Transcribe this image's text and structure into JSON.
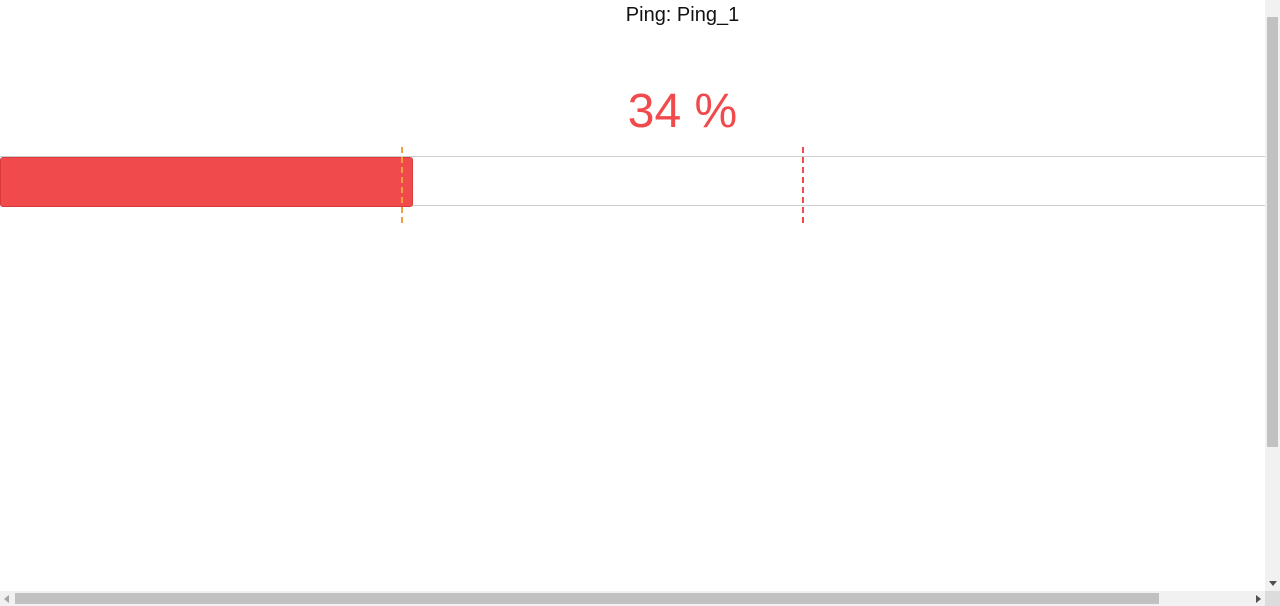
{
  "title": "Ping: Ping_1",
  "gauge": {
    "value_text": "34 %",
    "value_percent": 34,
    "bar_color": "#f14a4c",
    "bar_border_color": "#d83a3c",
    "thresholds": [
      {
        "name": "warning",
        "percent": 33,
        "color": "#f0a13a"
      },
      {
        "name": "critical",
        "percent": 66,
        "color": "#f14a4c"
      }
    ],
    "track_border_color": "#cfcfcf"
  },
  "scrollbars": {
    "vertical_thumb_fraction": 0.73,
    "horizontal_thumb_fraction": 0.9
  }
}
